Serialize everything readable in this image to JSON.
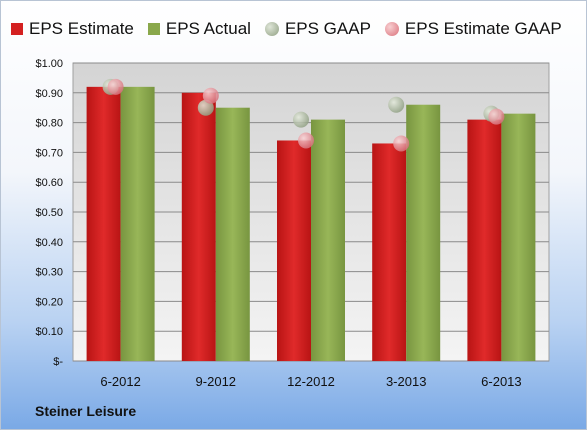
{
  "chart_data": {
    "type": "bar",
    "categories": [
      "6-2012",
      "9-2012",
      "12-2012",
      "3-2013",
      "6-2013"
    ],
    "series": [
      {
        "name": "EPS Estimate",
        "kind": "bar",
        "color": "#d42020",
        "values": [
          0.92,
          0.9,
          0.74,
          0.73,
          0.81
        ]
      },
      {
        "name": "EPS Actual",
        "kind": "bar",
        "color": "#8aa84b",
        "values": [
          0.92,
          0.85,
          0.81,
          0.86,
          0.83
        ]
      },
      {
        "name": "EPS GAAP",
        "kind": "marker",
        "color": "#a7b79a",
        "values": [
          0.92,
          0.85,
          0.81,
          0.86,
          0.83
        ]
      },
      {
        "name": "EPS Estimate GAAP",
        "kind": "marker",
        "color": "#e8888e",
        "values": [
          0.92,
          0.89,
          0.74,
          0.73,
          0.82
        ]
      }
    ],
    "y_ticks": [
      "$-",
      "$0.10",
      "$0.20",
      "$0.30",
      "$0.40",
      "$0.50",
      "$0.60",
      "$0.70",
      "$0.80",
      "$0.90",
      "$1.00"
    ],
    "ylim": [
      0,
      1.0
    ],
    "grid": true,
    "legend": "top"
  },
  "company": "Steiner Leisure"
}
